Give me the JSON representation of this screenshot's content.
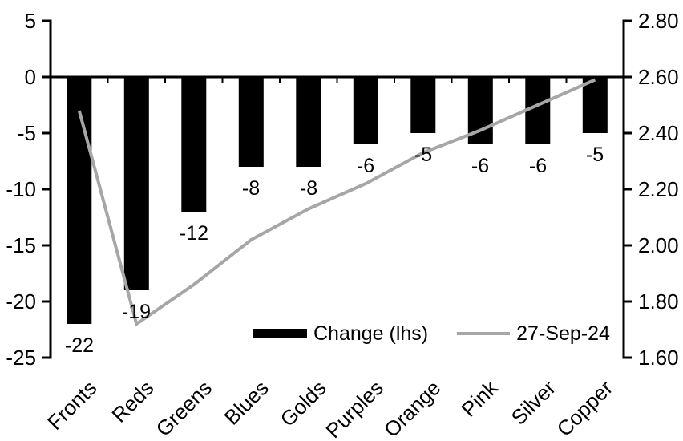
{
  "chart_data": {
    "type": "bar",
    "title": "",
    "xlabel": "",
    "ylabel": "",
    "grid": false,
    "background": "#ffffff",
    "categories": [
      "Fronts",
      "Reds",
      "Greens",
      "Blues",
      "Golds",
      "Purples",
      "Orange",
      "Pink",
      "Silver",
      "Copper"
    ],
    "series": [
      {
        "name": "Change (lhs)",
        "type": "bar",
        "axis": "left",
        "color": "#000000",
        "values": [
          -22,
          -19,
          -12,
          -8,
          -8,
          -6,
          -5,
          -6,
          -6,
          -5
        ]
      },
      {
        "name": "27-Sep-24",
        "type": "line",
        "axis": "right",
        "color": "#a6a6a6",
        "values": [
          2.48,
          1.72,
          1.86,
          2.02,
          2.13,
          2.22,
          2.33,
          2.41,
          2.5,
          2.59
        ]
      }
    ],
    "bar_value_labels": [
      "-22",
      "-19",
      "-12",
      "-8",
      "-8",
      "-6",
      "-5",
      "-6",
      "-6",
      "-5"
    ],
    "left_axis": {
      "ticks": [
        "5",
        "0",
        "-5",
        "-10",
        "-15",
        "-20",
        "-25"
      ],
      "max": 5,
      "min": -25
    },
    "right_axis": {
      "ticks": [
        "2.80",
        "2.60",
        "2.40",
        "2.20",
        "2.00",
        "1.80",
        "1.60"
      ],
      "max": 2.8,
      "min": 1.6
    },
    "legend": {
      "position": "bottom-inside",
      "items": [
        {
          "label": "Change (lhs)",
          "swatch": "bar"
        },
        {
          "label": "27-Sep-24",
          "swatch": "line"
        }
      ]
    }
  }
}
